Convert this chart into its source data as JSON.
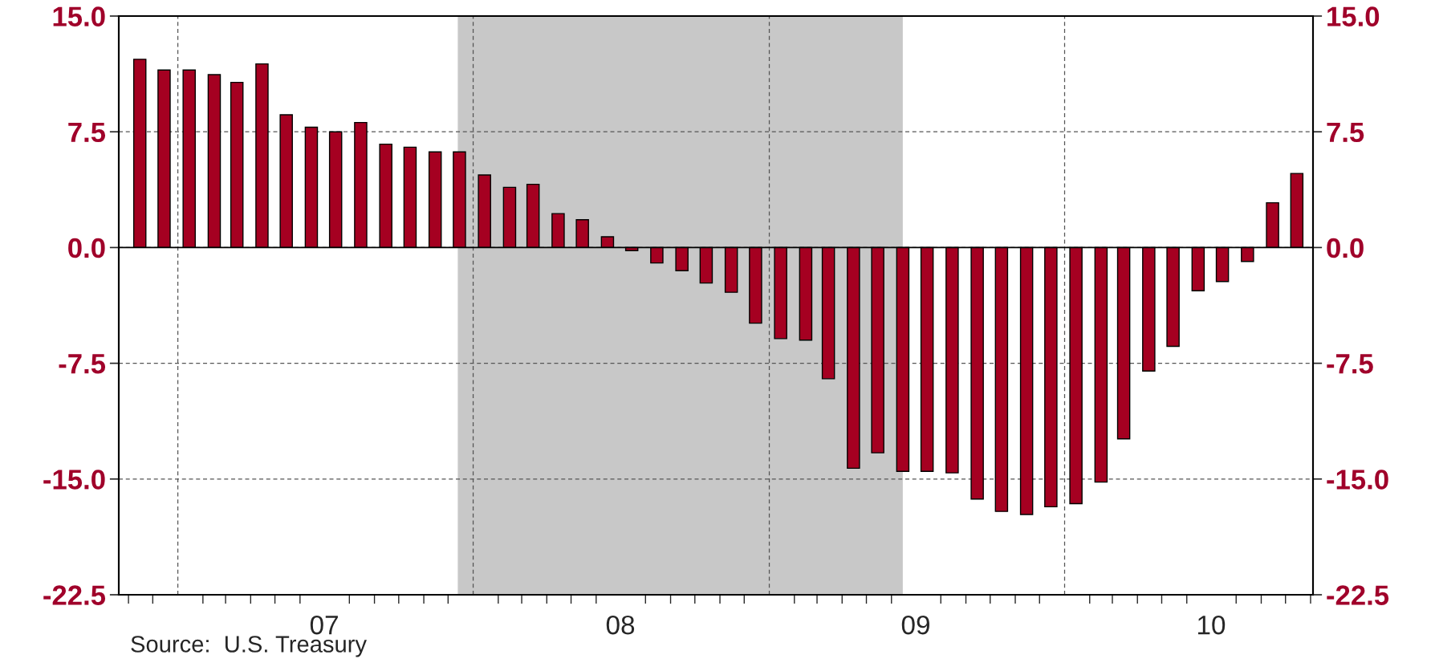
{
  "chart_data": {
    "type": "bar",
    "x": [
      "2006-11-15",
      "2006-12-15",
      "2007-01-15",
      "2007-02-15",
      "2007-03-15",
      "2007-04-15",
      "2007-05-15",
      "2007-06-15",
      "2007-07-15",
      "2007-08-15",
      "2007-09-15",
      "2007-10-15",
      "2007-11-15",
      "2007-12-15",
      "2008-01-15",
      "2008-02-15",
      "2008-03-15",
      "2008-04-15",
      "2008-05-15",
      "2008-06-15",
      "2008-07-15",
      "2008-08-15",
      "2008-09-15",
      "2008-10-15",
      "2008-11-15",
      "2008-12-15",
      "2009-01-15",
      "2009-02-15",
      "2009-03-15",
      "2009-04-15",
      "2009-05-15",
      "2009-06-15",
      "2009-07-15",
      "2009-08-15",
      "2009-09-15",
      "2009-10-15",
      "2009-11-15",
      "2009-12-15",
      "2010-01-15",
      "2010-02-15",
      "2010-03-15",
      "2010-04-15",
      "2010-05-15",
      "2010-06-15",
      "2010-07-15",
      "2010-08-15",
      "2010-09-15",
      "2010-10-15"
    ],
    "series": [
      {
        "color": "#a50021",
        "values": [
          12.2,
          11.5,
          11.5,
          11.2,
          10.7,
          11.9,
          8.6,
          7.8,
          7.5,
          8.1,
          6.7,
          6.5,
          6.2,
          6.2,
          4.7,
          3.9,
          4.1,
          2.2,
          1.8,
          0.7,
          -0.2,
          -1.0,
          -1.5,
          -2.3,
          -2.9,
          -4.9,
          -5.9,
          -6.0,
          -8.5,
          -14.3,
          -13.3,
          -14.5,
          -14.5,
          -14.6,
          -16.3,
          -17.1,
          -17.3,
          -16.8,
          -16.6,
          -15.2,
          -12.4,
          -8.0,
          -6.4,
          -2.8,
          -2.2,
          -0.9,
          2.9,
          4.8
        ]
      }
    ],
    "xlim": [
      "2006-10-20",
      "2010-11-04"
    ],
    "xticks": [
      {
        "value": "2007-01-01",
        "label": null
      },
      {
        "value": "2007-07-01",
        "label": "07"
      },
      {
        "value": "2008-01-01",
        "label": null
      },
      {
        "value": "2008-07-01",
        "label": "08"
      },
      {
        "value": "2009-01-01",
        "label": null
      },
      {
        "value": "2009-07-01",
        "label": "09"
      },
      {
        "value": "2010-01-01",
        "label": null
      },
      {
        "value": "2010-07-01",
        "label": "10"
      }
    ],
    "ylim": [
      -22.5,
      15
    ],
    "yticks": [
      {
        "value": -22.5,
        "label": "-22.5"
      },
      {
        "value": -15,
        "label": "-15.0"
      },
      {
        "value": -7.5,
        "label": "-7.5"
      },
      {
        "value": 0,
        "label": "0.0"
      },
      {
        "value": 7.5,
        "label": "7.5"
      },
      {
        "value": 15,
        "label": "15.0"
      }
    ],
    "y2lim": [
      -22.5,
      15
    ],
    "y2ticks": [
      {
        "value": -22.5,
        "label": "-22.5"
      },
      {
        "value": -15,
        "label": "-15.0"
      },
      {
        "value": -7.5,
        "label": "-7.5"
      },
      {
        "value": 0,
        "label": "0.0"
      },
      {
        "value": 7.5,
        "label": "7.5"
      },
      {
        "value": 15,
        "label": "15.0"
      }
    ],
    "grid": true,
    "bands": [
      {
        "axis": "x",
        "from": "2007-12-13",
        "to": "2009-06-15",
        "color": "#c8c8c8"
      }
    ],
    "ref_lines": [
      {
        "axis": "y",
        "value": 0,
        "color": "#000000",
        "line_style": "solid"
      }
    ],
    "annotations": [
      "Source:  U.S. Treasury"
    ]
  }
}
